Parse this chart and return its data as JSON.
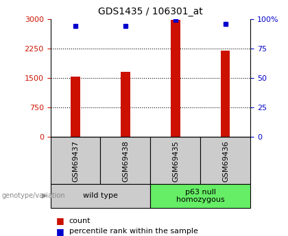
{
  "title": "GDS1435 / 106301_at",
  "samples": [
    "GSM69437",
    "GSM69438",
    "GSM69435",
    "GSM69436"
  ],
  "counts": [
    1540,
    1660,
    2980,
    2190
  ],
  "percentiles": [
    94,
    94,
    99,
    96
  ],
  "ylim_left": [
    0,
    3000
  ],
  "ylim_right": [
    0,
    100
  ],
  "yticks_left": [
    0,
    750,
    1500,
    2250,
    3000
  ],
  "yticks_right": [
    0,
    25,
    50,
    75,
    100
  ],
  "ytick_labels_left": [
    "0",
    "750",
    "1500",
    "2250",
    "3000"
  ],
  "ytick_labels_right": [
    "0",
    "25",
    "50",
    "75",
    "100%"
  ],
  "bar_color": "#cc1100",
  "dot_color": "#0000cc",
  "bar_width": 0.18,
  "groups": [
    {
      "label": "wild type",
      "indices": [
        0,
        1
      ],
      "color": "#cccccc"
    },
    {
      "label": "p63 null\nhomozygous",
      "indices": [
        2,
        3
      ],
      "color": "#66ee66"
    }
  ],
  "genotype_label": "genotype/variation",
  "legend_count_label": "count",
  "legend_pct_label": "percentile rank within the sample",
  "left_yaxis_color": "#cc1100",
  "right_yaxis_color": "#0000cc",
  "sample_box_color": "#cccccc",
  "title_fontsize": 10,
  "axis_fontsize": 8,
  "label_fontsize": 8,
  "legend_fontsize": 8
}
